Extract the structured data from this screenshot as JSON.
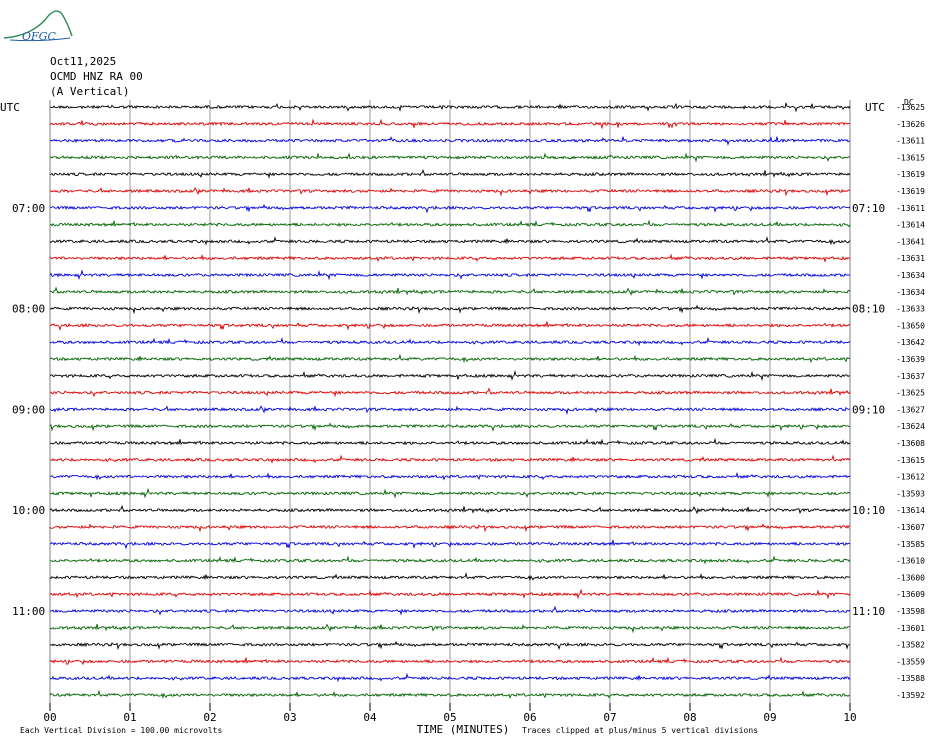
{
  "logo": {
    "text": "OFGC"
  },
  "header": {
    "date": "Oct11,2025",
    "station": "OCMD HNZ RA 00",
    "component": "(A Vertical)"
  },
  "chart_data": {
    "type": "line",
    "title": "",
    "left_axis_label": "UTC",
    "right_axis_label": "UTC",
    "dc_label": "DC",
    "xlabel": "TIME (MINUTES)",
    "x_ticks": [
      "00",
      "01",
      "02",
      "03",
      "04",
      "05",
      "06",
      "07",
      "08",
      "09",
      "10"
    ],
    "xlim": [
      0,
      10
    ],
    "left_time_labels": [
      {
        "row": 6,
        "text": "07:00"
      },
      {
        "row": 12,
        "text": "08:00"
      },
      {
        "row": 18,
        "text": "09:00"
      },
      {
        "row": 24,
        "text": "10:00"
      },
      {
        "row": 30,
        "text": "11:00"
      }
    ],
    "right_time_labels": [
      {
        "row": 6,
        "text": "07:10"
      },
      {
        "row": 12,
        "text": "08:10"
      },
      {
        "row": 18,
        "text": "09:10"
      },
      {
        "row": 24,
        "text": "10:10"
      },
      {
        "row": 30,
        "text": "11:10"
      }
    ],
    "trace_colors": [
      "#000000",
      "#e00000",
      "#0000e0",
      "#006400"
    ],
    "dc_offsets": [
      "-13625",
      "-13626",
      "-13611",
      "-13615",
      "-13619",
      "-13619",
      "-13611",
      "-13614",
      "-13641",
      "-13631",
      "-13634",
      "-13634",
      "-13633",
      "-13650",
      "-13642",
      "-13639",
      "-13637",
      "-13625",
      "-13627",
      "-13624",
      "-13608",
      "-13615",
      "-13612",
      "-13593",
      "-13614",
      "-13607",
      "-13585",
      "-13610",
      "-13600",
      "-13609",
      "-13598",
      "-13601",
      "-13582",
      "-13559",
      "-13588",
      "-13592"
    ],
    "footer_left": "Each Vertical Division =  100.00 microvolts",
    "footer_right": "Traces clipped at plus/minus 5 vertical divisions"
  }
}
